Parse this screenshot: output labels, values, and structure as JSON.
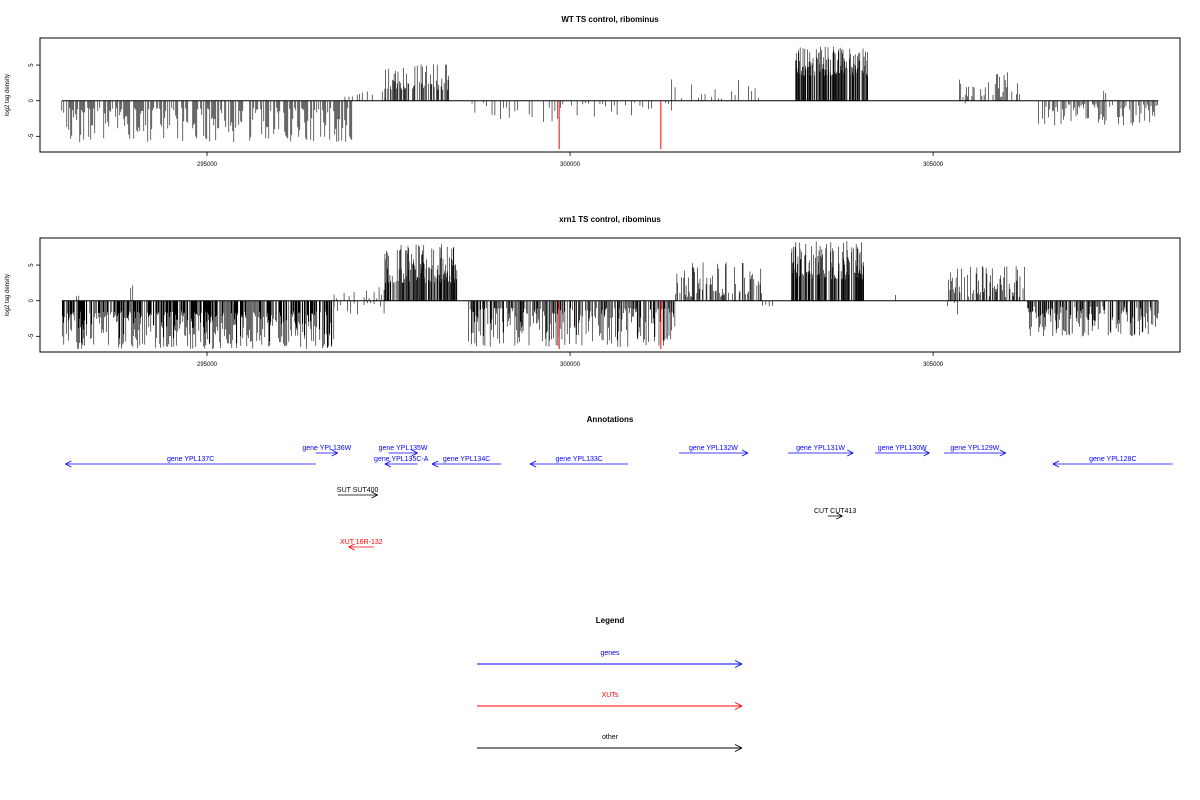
{
  "chart_data": [
    {
      "type": "bar",
      "title": "WT TS control, ribominus",
      "ylabel": "log2 tag density",
      "xlim": [
        292700,
        308400
      ],
      "ylim": [
        -7.2,
        8.8
      ],
      "xticks": [
        295000,
        300000,
        305000
      ],
      "yticks": [
        5,
        0,
        -5
      ],
      "grid": false,
      "segments": [
        {
          "x0": 293000,
          "x1": 297000,
          "sign": -1,
          "min": 1.0,
          "max": 5.8,
          "density": 1.0
        },
        {
          "x0": 296900,
          "x1": 297000,
          "sign": 1,
          "min": 0.5,
          "max": 1.6,
          "density": 0.5
        },
        {
          "x0": 297000,
          "x1": 297450,
          "sign": 1,
          "min": 0.3,
          "max": 1.3,
          "density": 0.4
        },
        {
          "x0": 297450,
          "x1": 298330,
          "sign": 1,
          "min": 1.5,
          "max": 5.2,
          "density": 1.3
        },
        {
          "x0": 298650,
          "x1": 299900,
          "sign": -1,
          "min": 0.3,
          "max": 3.0,
          "density": 0.35
        },
        {
          "x0": 299900,
          "x1": 301400,
          "sign": -1,
          "min": 0.3,
          "max": 2.3,
          "density": 0.35
        },
        {
          "x0": 301400,
          "x1": 302650,
          "sign": 1,
          "min": 0.3,
          "max": 3.5,
          "density": 0.3
        },
        {
          "x0": 303100,
          "x1": 304100,
          "sign": 1,
          "min": 3.5,
          "max": 7.6,
          "density": 2.8
        },
        {
          "x0": 305350,
          "x1": 306200,
          "sign": 1,
          "min": 0.5,
          "max": 4.2,
          "density": 0.9
        },
        {
          "x0": 305350,
          "x1": 305450,
          "sign": -1,
          "min": 0.3,
          "max": 2.0,
          "density": 0.3
        },
        {
          "x0": 306400,
          "x1": 308100,
          "sign": -1,
          "min": 0.5,
          "max": 3.5,
          "density": 0.8
        },
        {
          "x0": 307350,
          "x1": 307400,
          "sign": 1,
          "min": 1.0,
          "max": 1.5,
          "density": 0.5
        }
      ],
      "red_marks": [
        {
          "x": 299850,
          "y": -6.8
        },
        {
          "x": 301250,
          "y": -6.8
        }
      ]
    },
    {
      "type": "bar",
      "title": "xrn1 TS control, ribominus",
      "ylabel": "log2 tag density",
      "xlim": [
        292700,
        308400
      ],
      "ylim": [
        -7.2,
        8.8
      ],
      "xticks": [
        295000,
        300000,
        305000
      ],
      "yticks": [
        5,
        0,
        -5
      ],
      "grid": false,
      "segments": [
        {
          "x0": 293000,
          "x1": 296750,
          "sign": -1,
          "min": 1.5,
          "max": 6.8,
          "density": 2.0
        },
        {
          "x0": 293200,
          "x1": 293300,
          "sign": 1,
          "min": 0.5,
          "max": 1.2,
          "density": 0.4
        },
        {
          "x0": 293950,
          "x1": 294000,
          "sign": 1,
          "min": 1.5,
          "max": 2.3,
          "density": 0.5
        },
        {
          "x0": 296750,
          "x1": 297450,
          "sign": 1,
          "min": 0.3,
          "max": 2.0,
          "density": 0.4
        },
        {
          "x0": 296750,
          "x1": 297450,
          "sign": -1,
          "min": 0.3,
          "max": 2.0,
          "density": 0.3
        },
        {
          "x0": 297450,
          "x1": 298450,
          "sign": 1,
          "min": 2.5,
          "max": 8.0,
          "density": 2.6
        },
        {
          "x0": 298600,
          "x1": 301450,
          "sign": -1,
          "min": 1.0,
          "max": 6.5,
          "density": 1.7
        },
        {
          "x0": 301450,
          "x1": 302650,
          "sign": 1,
          "min": 0.5,
          "max": 5.5,
          "density": 1.3
        },
        {
          "x0": 302650,
          "x1": 302800,
          "sign": -1,
          "min": 0.3,
          "max": 0.9,
          "density": 0.3
        },
        {
          "x0": 303050,
          "x1": 304050,
          "sign": 1,
          "min": 3.0,
          "max": 8.5,
          "density": 2.8
        },
        {
          "x0": 304450,
          "x1": 304500,
          "sign": 1,
          "min": 0.8,
          "max": 1.2,
          "density": 0.4
        },
        {
          "x0": 305200,
          "x1": 306300,
          "sign": 1,
          "min": 0.5,
          "max": 5.0,
          "density": 1.3
        },
        {
          "x0": 305200,
          "x1": 305400,
          "sign": -1,
          "min": 0.3,
          "max": 2.0,
          "density": 0.3
        },
        {
          "x0": 306300,
          "x1": 308100,
          "sign": -1,
          "min": 0.8,
          "max": 5.0,
          "density": 1.5
        }
      ],
      "red_marks": [
        {
          "x": 299850,
          "y": -6.8
        },
        {
          "x": 301250,
          "y": -6.8
        }
      ]
    }
  ],
  "annotations": {
    "title": "Annotations",
    "features": [
      {
        "label": "gene YPL137C",
        "start": 296500,
        "end": 293050,
        "color": "#0000ff",
        "row": 2
      },
      {
        "label": "gene YPL136W",
        "start": 296500,
        "end": 296800,
        "color": "#0000ff",
        "row": 1
      },
      {
        "label": "gene YPL135W",
        "start": 297500,
        "end": 297900,
        "color": "#0000ff",
        "row": 1
      },
      {
        "label": "gene YPL135C-A",
        "start": 297900,
        "end": 297450,
        "color": "#0000ff",
        "row": 2
      },
      {
        "label": "gene YPL134C",
        "start": 299050,
        "end": 298100,
        "color": "#0000ff",
        "row": 2
      },
      {
        "label": "gene YPL133C",
        "start": 300800,
        "end": 299450,
        "color": "#0000ff",
        "row": 2
      },
      {
        "label": "gene YPL132W",
        "start": 301500,
        "end": 302450,
        "color": "#0000ff",
        "row": 1
      },
      {
        "label": "gene YPL131W",
        "start": 303000,
        "end": 303900,
        "color": "#0000ff",
        "row": 1
      },
      {
        "label": "gene YPL130W",
        "start": 304200,
        "end": 304950,
        "color": "#0000ff",
        "row": 1
      },
      {
        "label": "gene YPL129W",
        "start": 305150,
        "end": 306000,
        "color": "#0000ff",
        "row": 1
      },
      {
        "label": "gene YPL128C",
        "start": 308300,
        "end": 306650,
        "color": "#0000ff",
        "row": 2
      },
      {
        "label": "SUT SUT400",
        "start": 296800,
        "end": 297350,
        "color": "#000000",
        "row": 3
      },
      {
        "label": "CUT CUT413",
        "start": 303550,
        "end": 303750,
        "color": "#000000",
        "row": 4
      },
      {
        "label": "XUT 16R-132",
        "start": 297300,
        "end": 296950,
        "color": "#ff0000",
        "row": 5
      }
    ]
  },
  "legend": {
    "title": "Legend",
    "items": [
      {
        "label": "genes",
        "color": "#0000ff"
      },
      {
        "label": "XUTs",
        "color": "#ff0000"
      },
      {
        "label": "other",
        "color": "#000000"
      }
    ]
  }
}
